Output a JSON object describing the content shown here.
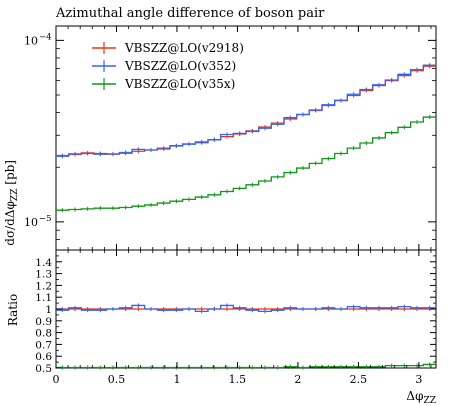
{
  "chart_data": {
    "type": "line",
    "title": "Azimuthal angle difference of boson pair",
    "xlabel": "Δφ_ZZ",
    "ylabel": "dσ/dΔφ_ZZ [pb]",
    "ratio_ylabel": "Ratio",
    "xlim": [
      0,
      3.1416
    ],
    "ylim_main": [
      7e-06,
      0.00012
    ],
    "yscale_main": "log",
    "ylim_ratio": [
      0.5,
      1.5
    ],
    "x_ticks": [
      {
        "v": 0,
        "label": "0"
      },
      {
        "v": 0.5,
        "label": "0.5"
      },
      {
        "v": 1,
        "label": "1"
      },
      {
        "v": 1.5,
        "label": "1.5"
      },
      {
        "v": 2,
        "label": "2"
      },
      {
        "v": 2.5,
        "label": "2.5"
      },
      {
        "v": 3,
        "label": "3"
      }
    ],
    "y_ticks_main": [
      {
        "v": 0.0001,
        "base": "10",
        "exp": "−4"
      },
      {
        "v": 1e-05,
        "base": "10",
        "exp": "−5"
      }
    ],
    "y_ticks_ratio": [
      {
        "v": 0.5,
        "label": "0.5"
      },
      {
        "v": 0.6,
        "label": "0.6"
      },
      {
        "v": 0.7,
        "label": "0.7"
      },
      {
        "v": 0.8,
        "label": "0.8"
      },
      {
        "v": 0.9,
        "label": "0.9"
      },
      {
        "v": 1.0,
        "label": "1"
      },
      {
        "v": 1.1,
        "label": "1.1"
      },
      {
        "v": 1.2,
        "label": "1.2"
      },
      {
        "v": 1.3,
        "label": "1.3"
      },
      {
        "v": 1.4,
        "label": "1.4"
      }
    ],
    "bins": 30,
    "legend_position": "top-left",
    "series": [
      {
        "name": "VBSZZ@LO(v2918)",
        "color": "#ee3311",
        "values": [
          2.32e-05,
          2.35e-05,
          2.4e-05,
          2.38e-05,
          2.36e-05,
          2.39e-05,
          2.45e-05,
          2.49e-05,
          2.55e-05,
          2.63e-05,
          2.69e-05,
          2.76e-05,
          2.84e-05,
          2.95e-05,
          3.05e-05,
          3.17e-05,
          3.33e-05,
          3.5e-05,
          3.69e-05,
          3.91e-05,
          4.11e-05,
          4.38e-05,
          4.66e-05,
          4.97e-05,
          5.3e-05,
          5.63e-05,
          6e-05,
          6.4e-05,
          6.8e-05,
          7.2e-05
        ]
      },
      {
        "name": "VBSZZ@LO(v352)",
        "color": "#3366ee",
        "values": [
          2.3e-05,
          2.37e-05,
          2.38e-05,
          2.36e-05,
          2.37e-05,
          2.41e-05,
          2.51e-05,
          2.49e-05,
          2.52e-05,
          2.62e-05,
          2.68e-05,
          2.73e-05,
          2.83e-05,
          3.03e-05,
          3.07e-05,
          3.15e-05,
          3.28e-05,
          3.45e-05,
          3.75e-05,
          3.9e-05,
          4.13e-05,
          4.42e-05,
          4.68e-05,
          5.05e-05,
          5.36e-05,
          5.69e-05,
          6.05e-05,
          6.5e-05,
          6.9e-05,
          7.3e-05
        ]
      },
      {
        "name": "VBSZZ@LO(v35x)",
        "color": "#109618",
        "values": [
          1.16e-05,
          1.17e-05,
          1.18e-05,
          1.19e-05,
          1.19e-05,
          1.2e-05,
          1.22e-05,
          1.24e-05,
          1.27e-05,
          1.3e-05,
          1.33e-05,
          1.37e-05,
          1.41e-05,
          1.47e-05,
          1.53e-05,
          1.6e-05,
          1.68e-05,
          1.77e-05,
          1.87e-05,
          1.98e-05,
          2.1e-05,
          2.23e-05,
          2.38e-05,
          2.55e-05,
          2.72e-05,
          2.9e-05,
          3.1e-05,
          3.32e-05,
          3.55e-05,
          3.78e-05
        ]
      }
    ],
    "ratio_series": [
      {
        "name": "VBSZZ@LO(v2918)",
        "color": "#ee3311",
        "values": [
          1,
          1,
          1,
          1,
          1,
          1,
          1,
          1,
          1,
          1,
          1,
          1,
          1,
          1,
          1,
          1,
          1,
          1,
          1,
          1,
          1,
          1,
          1,
          1,
          1,
          1,
          1,
          1,
          1,
          1
        ]
      },
      {
        "name": "VBSZZ@LO(v352)",
        "color": "#3366ee",
        "values": [
          0.99,
          1.01,
          0.99,
          0.99,
          1.0,
          1.01,
          1.03,
          1.0,
          0.99,
          0.99,
          1.0,
          0.98,
          1.0,
          1.03,
          1.01,
          0.99,
          0.98,
          0.99,
          1.01,
          1.0,
          1.0,
          1.01,
          1.0,
          1.02,
          1.01,
          1.01,
          1.01,
          1.02,
          1.01,
          1.01
        ]
      },
      {
        "name": "VBSZZ@LO(v35x)",
        "color": "#109618",
        "values": [
          0.5,
          0.5,
          0.49,
          0.5,
          0.5,
          0.5,
          0.5,
          0.5,
          0.5,
          0.49,
          0.49,
          0.5,
          0.5,
          0.5,
          0.5,
          0.5,
          0.5,
          0.5,
          0.51,
          0.5,
          0.51,
          0.51,
          0.51,
          0.51,
          0.51,
          0.51,
          0.52,
          0.52,
          0.52,
          0.53
        ]
      }
    ]
  }
}
